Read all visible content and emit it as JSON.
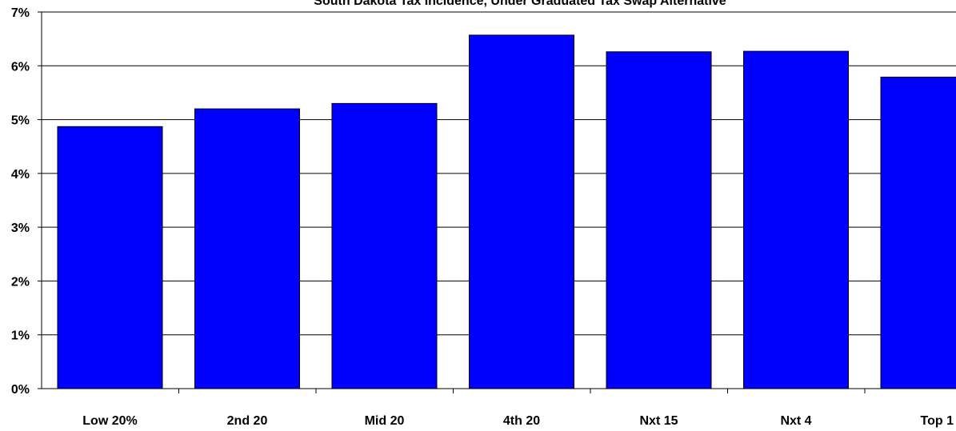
{
  "chart_data": {
    "type": "bar",
    "title": "South Dakota Tax Incidence, Under Graduated Tax Swap Alternative",
    "categories": [
      "Low 20%",
      "2nd 20",
      "Mid 20",
      "4th 20",
      "Nxt 15",
      "Nxt 4",
      "Top 1"
    ],
    "values": [
      4.87,
      5.2,
      5.3,
      6.57,
      6.26,
      6.27,
      5.79
    ],
    "value_unit": "%",
    "ylim": [
      0,
      7
    ],
    "yticks": [
      0,
      1,
      2,
      3,
      4,
      5,
      6,
      7
    ],
    "ytick_labels": [
      "0%",
      "1%",
      "2%",
      "3%",
      "4%",
      "5%",
      "6%",
      "7%"
    ],
    "xlabel": "",
    "ylabel": "",
    "grid": "horizontal",
    "legend": "none",
    "colors": {
      "bar": "#0000ff",
      "bar_edge": "#000000",
      "grid": "#000000",
      "background": "#ffffff"
    }
  }
}
